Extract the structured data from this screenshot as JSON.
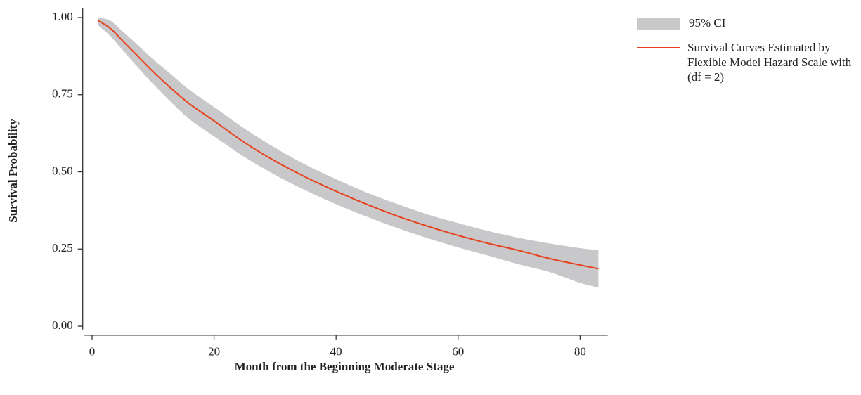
{
  "chart_data": {
    "type": "line",
    "x_label": "Month from the Beginning Moderate Stage",
    "y_label": "Survival Probability",
    "x": [
      1,
      3,
      5,
      7,
      10,
      13,
      16,
      20,
      25,
      30,
      35,
      40,
      45,
      50,
      55,
      60,
      65,
      70,
      75,
      80,
      83
    ],
    "band": {
      "name": "95% CI",
      "color": "#c8c8ca",
      "upper": [
        1.0,
        0.99,
        0.955,
        0.92,
        0.865,
        0.815,
        0.765,
        0.71,
        0.64,
        0.578,
        0.523,
        0.476,
        0.433,
        0.396,
        0.362,
        0.334,
        0.308,
        0.286,
        0.268,
        0.253,
        0.246
      ],
      "lower": [
        0.975,
        0.94,
        0.895,
        0.85,
        0.785,
        0.725,
        0.67,
        0.615,
        0.548,
        0.49,
        0.44,
        0.395,
        0.355,
        0.318,
        0.285,
        0.255,
        0.228,
        0.2,
        0.175,
        0.14,
        0.125
      ]
    },
    "series": [
      {
        "name": "Survival Curves Estimated by Flexible Model Hazard Scale with (df = 2)",
        "color": "#e8401c",
        "values": [
          0.99,
          0.965,
          0.925,
          0.885,
          0.825,
          0.77,
          0.72,
          0.665,
          0.595,
          0.535,
          0.483,
          0.437,
          0.395,
          0.357,
          0.324,
          0.294,
          0.268,
          0.245,
          0.219,
          0.198,
          0.186
        ]
      }
    ],
    "xlim": [
      -1.3,
      84.3
    ],
    "xticks": [
      0,
      20,
      40,
      60,
      80
    ],
    "ylim": [
      -0.02,
      1.03
    ],
    "yticks": [
      {
        "value": 0,
        "label": "0.00"
      },
      {
        "value": 0.25,
        "label": "0.25"
      },
      {
        "value": 0.5,
        "label": "0.50"
      },
      {
        "value": 0.75,
        "label": "0.75"
      },
      {
        "value": 1,
        "label": "1.00"
      }
    ]
  }
}
